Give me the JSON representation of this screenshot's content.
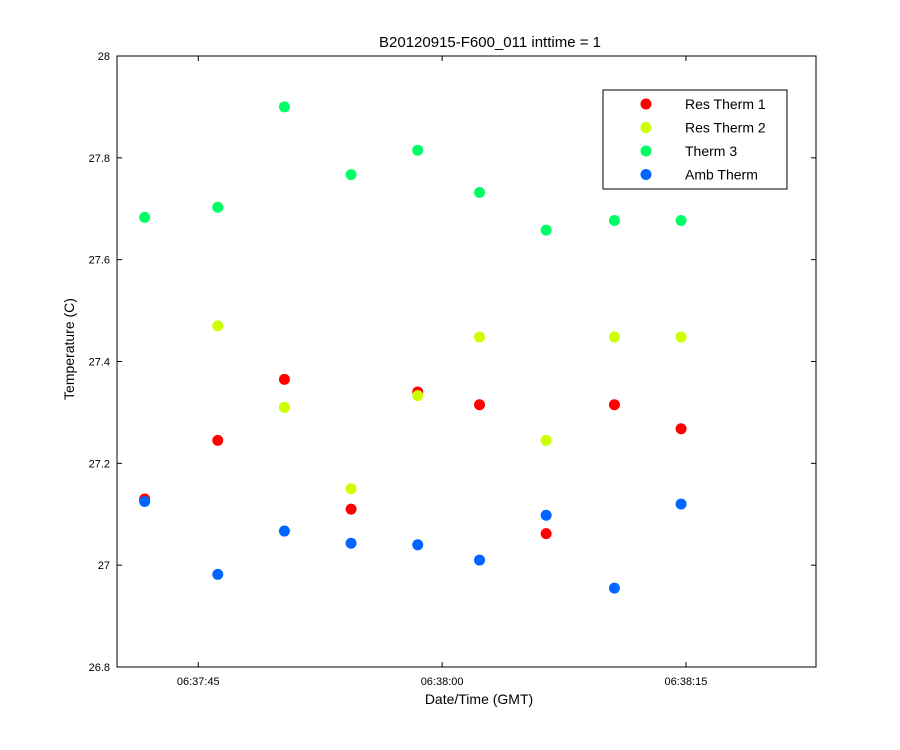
{
  "chart_data": {
    "type": "scatter",
    "title": "B20120915-F600_011 inttime = 1",
    "xlabel": "Date/Time (GMT)",
    "ylabel": "Temperature (C)",
    "ylim": [
      26.8,
      28
    ],
    "xlim": [
      "06:37:40",
      "06:38:23"
    ],
    "x_ticks": [
      "06:37:45",
      "06:38:00",
      "06:38:15"
    ],
    "y_ticks": [
      "26.8",
      "27",
      "27.2",
      "27.4",
      "27.6",
      "27.8",
      "28"
    ],
    "grid": false,
    "legend_position": "top-right",
    "x": [
      "06:37:41.7",
      "06:37:46.2",
      "06:37:50.3",
      "06:37:54.4",
      "06:37:58.5",
      "06:38:02.3",
      "06:38:06.4",
      "06:38:10.6",
      "06:38:14.7"
    ],
    "series": [
      {
        "name": "Res Therm 1",
        "color": "#ff0000",
        "values": [
          27.13,
          27.245,
          27.365,
          27.11,
          27.34,
          27.315,
          27.062,
          27.315,
          27.268
        ]
      },
      {
        "name": "Res Therm 2",
        "color": "#ccff00",
        "values": [
          null,
          27.47,
          27.31,
          27.15,
          27.333,
          27.448,
          27.245,
          27.448,
          27.448
        ]
      },
      {
        "name": "Therm 3",
        "color": "#00ff66",
        "values": [
          27.683,
          27.703,
          27.9,
          27.767,
          27.815,
          27.732,
          27.658,
          27.677,
          27.677
        ]
      },
      {
        "name": "Amb Therm",
        "color": "#0066ff",
        "values": [
          27.125,
          26.982,
          27.067,
          27.043,
          27.04,
          27.01,
          27.098,
          26.955,
          27.12
        ]
      }
    ]
  }
}
